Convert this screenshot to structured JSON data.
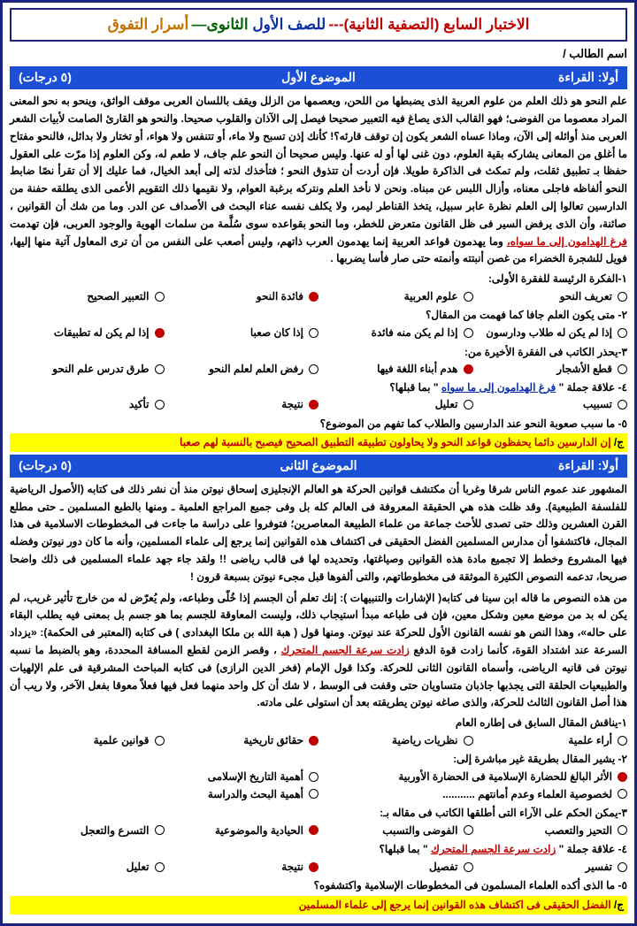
{
  "title": {
    "part1": "الاختبار السابع (التصفية الثانية)---",
    "part2": " للصف الأول ",
    "part3": " الثانوى—",
    "part4": "أسرار التفوق"
  },
  "student_label": "اسم الطالب /",
  "bar1": {
    "right": "أولا: القراءة",
    "center": "الموضوع الأول",
    "left": "(٥ درجات)"
  },
  "passage1": "علم النحو هو ذلك العلم من علوم العربية الذى يضبطها من اللحن، ويعصمها من الزلل ويقف باللسان العربى موقف الواثق، وينحو به نحو المعنى المراد معصوما من الفوضى؛ فهو القالب الذى يصاغ فيه التعبير صحيحا فيصل إلى الآذان والقلوب صحيحا. والنحو هو القارئ الصامت لأبيات الشعر العربى منذ أوائله إلى الآن، وماذا عساه الشعر يكون إن توقف قارئه؟! كأنك إذن تسبح ولا ماء، أو تتنفس ولا هواء، أو تختار ولا بدائل، فالنحو مفتاح ما أغلق من المعانى يشاركه بقية العلوم، دون غنى لها أو له عنها. وليس صحيحا أن النحو علم جاف، لا طعم له، وكن العلوم إذا مرّت على العقول حفظا بـ تطبيق ثقلت، ولم تمكث فى الذاكرة طويلا. فإن أردت أن تتذوق النحو ؛ فتأخذك لذته إلى أبعد الخيال، فما عليك إلا أن تقرأ نصًا ضابط النحو ألفاظه فاجلى معناه، وأزال اللبس عن مبناه. ونحن لا نأخذ العلم ونتركه برغبة العوام، ولا نقيمها ذلك التقويم الأعمى الذى يطلقه حفنة من الدارسين تعالوا إلى العلم نظرة عابر سبيل، يتخذ القناطر ليمر، ولا يكلف نفسه عناء البحث فى الأصداف عن الدر. وما من شك أن القوانين ، صائنة، وأن الذى يرفض السير فى ظل القانون متعرض للخطر، وما النحو بقواعده سوى سُلَّمة من سلمات الهوية والوجود العربى، فإن تهدمت ",
  "passage1_uline": "فرغ الهدامون إلى ما سواه،",
  "passage1_tail": " وما يهدمون قواعد العربية إنما يهدمون العرب ذاتهم، وليس أصعب على النفس من أن ترى المعاول آتية منها إليها، فويل للشجرة الخضراء من غصن أنبتته وأنمته حتى صار فأسا يضربها .",
  "q1": {
    "head": "١-الفكرة الرئيسة للفقرة الأولى:",
    "opts": [
      "تعريف النحو",
      "علوم العربية",
      "فائدة النحو",
      "التعبير الصحيح"
    ],
    "ans": 2
  },
  "q2": {
    "head": "٢- متى يكون العلم جافا كما فهمت من المقال؟",
    "opts": [
      "إذا لم يكن له طلاب ودارسون",
      "إذا لم يكن منه فائدة",
      "إذا كان صعبا",
      "إذا لم يكن له تطبيقات"
    ],
    "ans": 3
  },
  "q3": {
    "head": "٣-يحذر الكاتب فى الفقرة الأخيرة من:",
    "opts": [
      "قطع الأشجار",
      "هدم أبناء اللغة فيها",
      "رفض العلم لعلم النحو",
      "طرق تدرس علم النحو"
    ],
    "ans": 1
  },
  "q4": {
    "head": "٤- علاقة جملة \" فرغ الهدامون إلى ما سواه \" بما قبلها؟",
    "opts": [
      "تسبيب",
      "تعليل",
      "نتيجة",
      "تأكيد"
    ],
    "ans": 2
  },
  "q5head": "٥- ما سبب صعوبة النحو عند الدارسين والطلاب كما تفهم من الموضوع؟",
  "answer1_pre": "ج/ ",
  "answer1": "إن الدارسين دائما يحفظون قواعد النحو ولا يحاولون تطبيقه التطبيق الصحيح فيصبح بالنسبة لهم صعبا",
  "bar2": {
    "right": "أولا: القراءة",
    "center": "الموضوع الثانى",
    "left": "(٥ درجات)"
  },
  "passage2a": "المشهور عند عموم الناس شرقا وغربا أن مكتشف قوانين الحركة هو العالم الإنجليزى إسحاق نيوتن منذ أن نشر ذلك فى كتابه (الأصول الرياضية للفلسفة الطبيعية). وقد ظلت هذه هي الحقيقة المعروفة فى العالم كله بل وفى جميع المراجع العلمية ـ ومنها بالطبع المسلمين ـ حتى مطلع القرن العشرين وذلك حتى تصدى للأحث جماعة من علماء الطبيعة المعاصرين؛ فتوفروا على دراسة ما جاءت فى المخطوطات الاسلامية فى هذا المجال، فاكتشفوا أن مدارس المسلمين الفضل الحقيقى فى اكتشاف هذه القوانين إنما يرجع إلى علماء المسلمين، وأنه ما كان دور نيوتن وفضله فيها المشروع وخطط إلا تجميع مادة هذه القوانين وصياغتها، وتحديده لها فى قالب رياضى !! ولقد جاء جهد علماء المسلمين فى ذلك واضحا صريحا، تدعمه النصوص الكثيرة الموثقة فى مخطوطاتهم، والتى ألفوها قبل مجىء نيوتن بسبعة قرون !",
  "passage2b": "من هذه النصوص ما قاله ابن سينا فى كتابه( الإشارات والتنبيهات ): إنك تعلم أن الجسم إذا خُلّى وطباعه، ولم يُعرّض له من خارج تأثير غريب، لم يكن له بد من موضع معين وشكل معين، فإن فى طباعه مبدأ استيجاب ذلك، وليست المعاوقة للجسم بما هو جسم بل بمعنى فيه يطلب البقاء على حاله»، وهذا النص هو نفسه القانون الأول للحركة عند نيوتن. ومنها قول ( هبة الله بن ملكا البغدادى ) فى كتابه (المعتبر فى الحكمة): «يزداد السرعة عند اشتداد القوة، كأنما زادت قوة الدفع ",
  "passage2_uline": "زادت سرعة الجسم المتحرك",
  "passage2c": "، وقصر الزمن لقطع المسافة المحددة، وهو بالضبط ما نسبه نيوتن فى قانيه الرياضى، وأسماه القانون الثانى للحركة. وكذا قول الإمام (فخر الدين الرازى) فى كتابه المباحث المشرقية فى علم الإلهيات والطبيعيات  الحلقة التى يجذبها جاذبان متساويان حتى وقفت فى الوسط ، لا شك أن كل واحد منهما فعل فيها فعلاً معوقا بفعل الآخر، ولا ريب أن هذا أصل القانون الثالث للحركة، والذى صاغه نيوتن يطريقته بعد أن استولى على مادته.",
  "q6": {
    "head": "١-يناقش المقال السابق فى إطاره العام",
    "opts": [
      "أراء علمية",
      "نظريات رياضية",
      "حقائق تاريخية",
      "قوانين علمية"
    ],
    "ans": 2
  },
  "block7head": "٢- يشير المقال بطريقة غير مباشرة إلى:",
  "block7a": "الأثر البالغ للحضارة الإسلامية فى الحضارة الأوربية",
  "block7b": "أهمية التاريخ الإسلامى",
  "block7c": "لخصوصية العلماء وعدم أمانتهم ...........",
  "block7d": "أهمية البحث والدراسة",
  "q8": {
    "head": "٣-يمكن الحكم على الآراء التى أطلقها الكاتب فى مقاله بـ:",
    "opts": [
      "التحيز والتعصب",
      "الفوضى والتسبب",
      "الحيادية والموضوعية",
      "التسرع والتعجل"
    ],
    "ans": 2
  },
  "q9": {
    "head": "٤- علاقة جملة \" زادت سرعة الجسم المتحرك \" بما قبلها؟",
    "head_u": "زادت سرعة الجسم المتحرك",
    "opts": [
      "تفسير",
      "تفصيل",
      "نتيجة",
      "تعليل"
    ],
    "ans": 2
  },
  "q10head": "٥- ما الذى أكده العلماء المسلمون فى المخطوطات الإسلامية واكتشفوه؟",
  "answer2_pre": "ج/ ",
  "answer2": "الفضل الحقيقى فى اكتشاف هذه القوانين إنما يرجع إلى علماء المسلمين"
}
